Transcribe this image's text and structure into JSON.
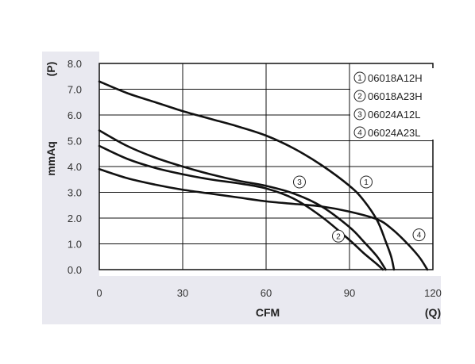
{
  "chart_data": {
    "type": "line",
    "x_unit": "CFM",
    "x_symbol": "(Q)",
    "y_unit": "mmAq",
    "y_symbol": "(P)",
    "xlim": [
      0,
      120
    ],
    "ylim": [
      0,
      8
    ],
    "x_ticks": [
      "0",
      "30",
      "60",
      "90",
      "120"
    ],
    "y_ticks": [
      "0.0",
      "1.0",
      "2.0",
      "3.0",
      "4.0",
      "5.0",
      "6.0",
      "7.0",
      "8.0"
    ],
    "grid": true,
    "legend_position": "top-right",
    "series": [
      {
        "marker": "1",
        "name": "06018A12H",
        "callout": [
          96,
          3.4
        ],
        "points": [
          [
            0,
            7.3
          ],
          [
            10,
            6.85
          ],
          [
            20,
            6.5
          ],
          [
            30,
            6.15
          ],
          [
            40,
            5.85
          ],
          [
            50,
            5.55
          ],
          [
            60,
            5.2
          ],
          [
            70,
            4.7
          ],
          [
            80,
            4.05
          ],
          [
            90,
            3.25
          ],
          [
            95,
            2.7
          ],
          [
            100,
            1.9
          ],
          [
            103,
            1.1
          ],
          [
            105,
            0.5
          ],
          [
            106,
            0.0
          ]
        ]
      },
      {
        "marker": "2",
        "name": "06018A23H",
        "callout": [
          86,
          1.3
        ],
        "points": [
          [
            0,
            4.8
          ],
          [
            10,
            4.3
          ],
          [
            20,
            3.95
          ],
          [
            30,
            3.7
          ],
          [
            40,
            3.5
          ],
          [
            50,
            3.35
          ],
          [
            60,
            3.15
          ],
          [
            70,
            2.75
          ],
          [
            80,
            2.05
          ],
          [
            90,
            1.15
          ],
          [
            95,
            0.65
          ],
          [
            100,
            0.2
          ],
          [
            102,
            0.0
          ]
        ]
      },
      {
        "marker": "3",
        "name": "06024A12L",
        "callout": [
          72,
          3.4
        ],
        "points": [
          [
            0,
            5.4
          ],
          [
            10,
            4.8
          ],
          [
            20,
            4.35
          ],
          [
            30,
            4.0
          ],
          [
            40,
            3.7
          ],
          [
            50,
            3.45
          ],
          [
            60,
            3.25
          ],
          [
            70,
            2.95
          ],
          [
            80,
            2.45
          ],
          [
            90,
            1.65
          ],
          [
            95,
            1.1
          ],
          [
            100,
            0.5
          ],
          [
            103,
            0.0
          ]
        ]
      },
      {
        "marker": "4",
        "name": "06024A23L",
        "callout": [
          115,
          1.35
        ],
        "points": [
          [
            0,
            3.9
          ],
          [
            10,
            3.55
          ],
          [
            20,
            3.3
          ],
          [
            30,
            3.1
          ],
          [
            40,
            2.95
          ],
          [
            50,
            2.8
          ],
          [
            60,
            2.65
          ],
          [
            70,
            2.55
          ],
          [
            80,
            2.45
          ],
          [
            90,
            2.25
          ],
          [
            100,
            1.95
          ],
          [
            105,
            1.6
          ],
          [
            110,
            1.1
          ],
          [
            115,
            0.5
          ],
          [
            118,
            0.0
          ]
        ]
      }
    ]
  }
}
